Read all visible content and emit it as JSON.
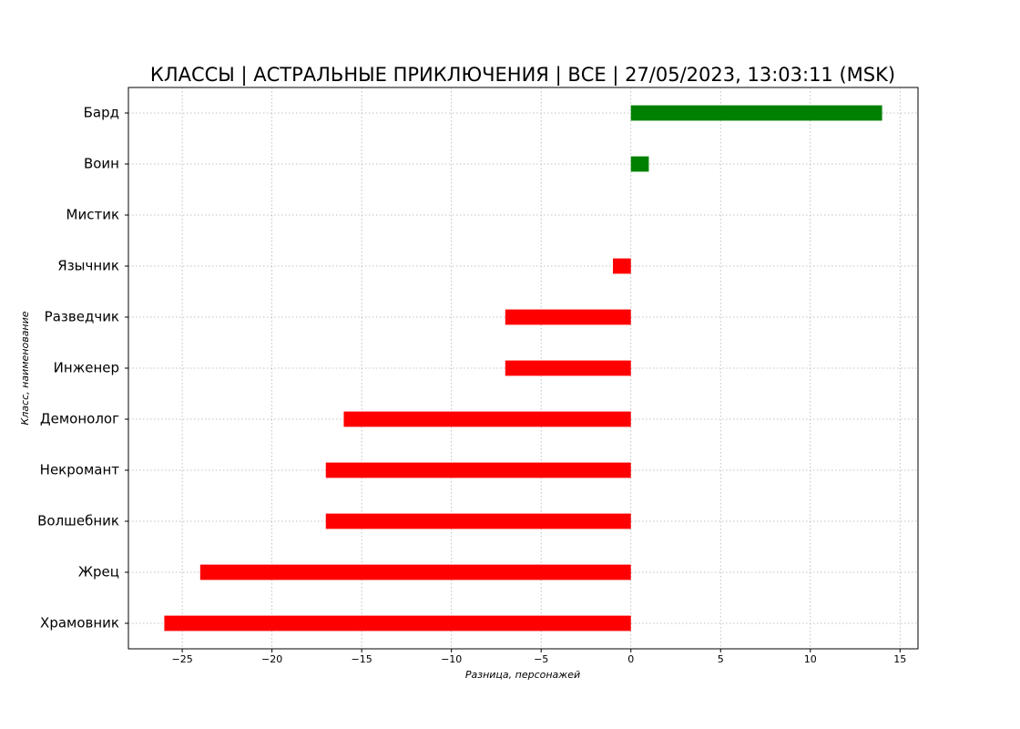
{
  "chart_data": {
    "type": "barh",
    "title": "КЛАССЫ | АСТРАЛЬНЫЕ ПРИКЛЮЧЕНИЯ | ВСЕ | 27/05/2023, 13:03:11 (MSK)",
    "x_label": "Разница, персонажей",
    "y_label": "Класс, наименование",
    "categories": [
      "Бард",
      "Воин",
      "Мистик",
      "Язычник",
      "Разведчик",
      "Инженер",
      "Демонолог",
      "Некромант",
      "Волшебник",
      "Жрец",
      "Храмовник"
    ],
    "values": [
      14,
      1,
      0,
      -1,
      -7,
      -7,
      -16,
      -17,
      -17,
      -24,
      -26
    ],
    "positive_color": "#008000",
    "negative_color": "#ff0000",
    "xlim": [
      -28,
      16
    ],
    "xticks": [
      {
        "value": -25,
        "label": "−25"
      },
      {
        "value": -20,
        "label": "−20"
      },
      {
        "value": -15,
        "label": "−15"
      },
      {
        "value": -10,
        "label": "−10"
      },
      {
        "value": -5,
        "label": "−5"
      },
      0,
      5,
      10,
      15
    ],
    "grid": true
  }
}
